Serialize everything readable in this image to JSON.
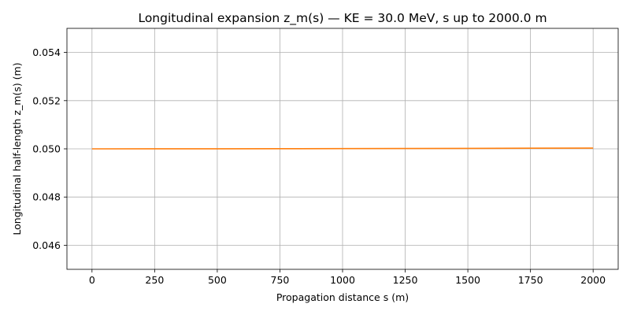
{
  "chart_data": {
    "type": "line",
    "title": "Longitudinal expansion z_m(s) — KE = 30.0 MeV, s up to 2000.0 m",
    "xlabel": "Propagation distance s (m)",
    "ylabel": "Longitudinal half-length z_m(s) (m)",
    "xlim": [
      -100,
      2100
    ],
    "ylim": [
      0.045,
      0.055
    ],
    "xticks": [
      0,
      250,
      500,
      750,
      1000,
      1250,
      1500,
      1750,
      2000
    ],
    "xtick_labels": [
      "0",
      "250",
      "500",
      "750",
      "1000",
      "1250",
      "1500",
      "1750",
      "2000"
    ],
    "yticks": [
      0.046,
      0.048,
      0.05,
      0.052,
      0.054
    ],
    "ytick_labels": [
      "0.046",
      "0.048",
      "0.050",
      "0.052",
      "0.054"
    ],
    "grid": true,
    "series": [
      {
        "color": "#ff7f0e",
        "x": [
          0,
          250,
          500,
          750,
          1000,
          1250,
          1500,
          1750,
          2000
        ],
        "y": [
          0.05,
          0.050001,
          0.050003,
          0.050006,
          0.05001,
          0.050014,
          0.050019,
          0.050025,
          0.050031
        ]
      }
    ]
  }
}
